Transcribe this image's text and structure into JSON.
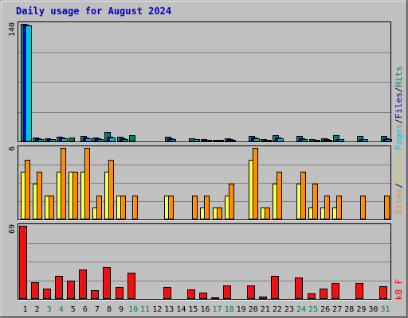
{
  "chart_data": {
    "type": "bar",
    "title": "Daily usage for August 2024",
    "categories": [
      "1",
      "2",
      "3",
      "4",
      "5",
      "6",
      "7",
      "8",
      "9",
      "10",
      "11",
      "12",
      "13",
      "14",
      "15",
      "16",
      "17",
      "18",
      "19",
      "20",
      "21",
      "22",
      "23",
      "24",
      "25",
      "26",
      "27",
      "28",
      "29",
      "30",
      "31"
    ],
    "weekend_days": [
      3,
      4,
      10,
      11,
      17,
      18,
      24,
      25,
      31
    ],
    "weekend_color": "#007f40",
    "weekday_color": "#000000",
    "panels": [
      {
        "id": "hits",
        "ymax": 140,
        "ymax_label": "140",
        "legend": [
          {
            "text": "Pages",
            "color": "#00c8d8"
          },
          {
            "text": "/",
            "color": "#000000"
          },
          {
            "text": "Files",
            "color": "#0000cc"
          },
          {
            "text": "/",
            "color": "#000000"
          },
          {
            "text": "Hits",
            "color": "#008060"
          }
        ],
        "series": [
          {
            "name": "Hits",
            "color": "#008060",
            "values": [
              140,
              5,
              4,
              6,
              5,
              7,
              5,
              11,
              6,
              8,
              0,
              0,
              6,
              0,
              4,
              3,
              2,
              4,
              0,
              7,
              3,
              8,
              0,
              7,
              3,
              4,
              8,
              0,
              7,
              0,
              7
            ]
          },
          {
            "name": "Files",
            "color": "#0000cc",
            "values": [
              139,
              4,
              3,
              5,
              0,
              5,
              4,
              6,
              4,
              0,
              0,
              0,
              4,
              0,
              0,
              2,
              1,
              3,
              0,
              5,
              2,
              5,
              0,
              4,
              0,
              3,
              3,
              0,
              3,
              0,
              4
            ]
          },
          {
            "name": "Pages",
            "color": "#00c8d8",
            "values": [
              138,
              3,
              3,
              4,
              0,
              4,
              3,
              5,
              3,
              0,
              0,
              0,
              3,
              0,
              3,
              2,
              1,
              2,
              0,
              4,
              2,
              4,
              0,
              3,
              2,
              2,
              3,
              0,
              3,
              0,
              3
            ]
          }
        ]
      },
      {
        "id": "visits",
        "ymax": 6,
        "ymax_label": "6",
        "legend": [
          {
            "text": "Sites",
            "color": "#ff8c00"
          },
          {
            "text": "/",
            "color": "#000000"
          },
          {
            "text": "Visits",
            "color": "#ffff40"
          }
        ],
        "series": [
          {
            "name": "Visits",
            "color": "#ffff40",
            "values": [
              4,
              3,
              2,
              4,
              4,
              4,
              1,
              4,
              2,
              0,
              0,
              0,
              2,
              0,
              0,
              1,
              1,
              2,
              0,
              5,
              1,
              3,
              0,
              3,
              1,
              1,
              1,
              0,
              0,
              0,
              0
            ]
          },
          {
            "name": "Sites",
            "color": "#ff8c00",
            "values": [
              5,
              4,
              2,
              6,
              4,
              6,
              2,
              5,
              2,
              2,
              0,
              0,
              2,
              0,
              2,
              2,
              1,
              3,
              0,
              6,
              1,
              4,
              0,
              4,
              3,
              2,
              2,
              0,
              2,
              0,
              2
            ]
          }
        ]
      },
      {
        "id": "kbytes",
        "ymax": 69,
        "ymax_label": "69",
        "legend": [
          {
            "text": "kB F",
            "color": "#ff0000"
          }
        ],
        "series": [
          {
            "name": "kB F",
            "color": "#ee1111",
            "values": [
              69,
              16,
              10,
              22,
              17,
              28,
              8,
              30,
              11,
              25,
              0,
              0,
              11,
              0,
              9,
              6,
              1,
              13,
              0,
              13,
              2,
              22,
              0,
              20,
              5,
              10,
              15,
              0,
              15,
              0,
              12
            ]
          }
        ]
      }
    ]
  }
}
